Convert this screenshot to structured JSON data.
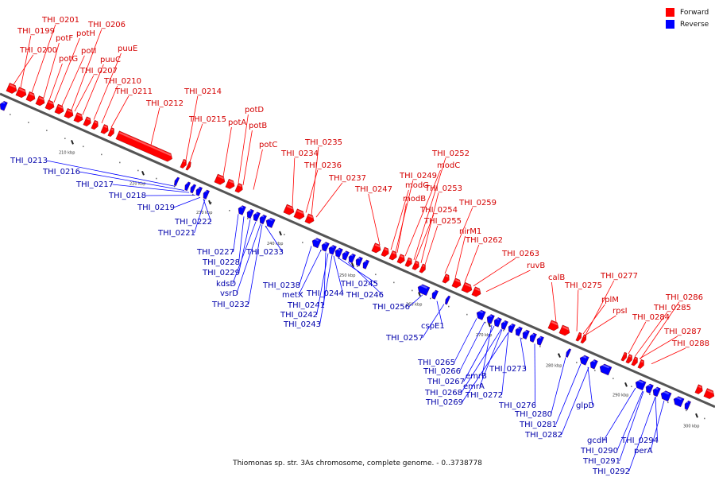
{
  "caption": "Thiomonas sp. str. 3As chromosome, complete genome. - 0..3738778",
  "legend": [
    {
      "label": "Forward",
      "color": "#ff0000"
    },
    {
      "label": "Reverse",
      "color": "#0000ff"
    }
  ],
  "colors": {
    "forward": "#ff0000",
    "forward_text": "#d40000",
    "reverse": "#0000ff",
    "reverse_text": "#0000aa",
    "backbone": "#555555",
    "ticks": "#222222"
  },
  "scale_labels": [
    "210 kbp",
    "220 kbp",
    "230 kbp",
    "240 kbp",
    "250 kbp",
    "260 kbp",
    "270 kbp",
    "280 kbp",
    "290 kbp",
    "300 kbp"
  ],
  "forward_labels": [
    "THI_0201",
    "THI_0199",
    "potF",
    "potH",
    "THI_0206",
    "THI_0200",
    "potG",
    "potI",
    "puuE",
    "puuC",
    "THI_0207",
    "THI_0210",
    "THI_0211",
    "THI_0212",
    "THI_0214",
    "THI_0215",
    "potD",
    "potA",
    "potB",
    "potC",
    "THI_0235",
    "THI_0234",
    "THI_0236",
    "THI_0237",
    "THI_0252",
    "modC",
    "THI_0249",
    "modG",
    "THI_0247",
    "modB",
    "THI_0253",
    "THI_0254",
    "THI_0255",
    "THI_0259",
    "nirM1",
    "THI_0262",
    "THI_0263",
    "ruvB",
    "calB",
    "THI_0277",
    "THI_0275",
    "rplM",
    "rpsI",
    "THI_0286",
    "THI_0285",
    "THI_0284",
    "THI_0287",
    "THI_0288"
  ],
  "reverse_labels": [
    "THI_0213",
    "THI_0216",
    "THI_0217",
    "THI_0218",
    "THI_0219",
    "THI_0222",
    "THI_0221",
    "THI_0227",
    "THI_0233",
    "THI_0228",
    "THI_0229",
    "kdsD",
    "vsrD",
    "THI_0232",
    "THI_0238",
    "metX",
    "THI_0245",
    "THI_0246",
    "THI_0244",
    "THI_0241",
    "THI_0242",
    "THI_0243",
    "THI_0256",
    "cspE1",
    "THI_0257",
    "THI_0265",
    "THI_0266",
    "emrB",
    "THI_0273",
    "THI_0267",
    "emrA",
    "THI_0268",
    "THI_0272",
    "THI_0269",
    "THI_0276",
    "THI_0280",
    "glpD",
    "THI_0281",
    "THI_0282",
    "gcdH",
    "THI_0294",
    "THI_0290",
    "perA",
    "THI_0291",
    "THI_0292"
  ]
}
